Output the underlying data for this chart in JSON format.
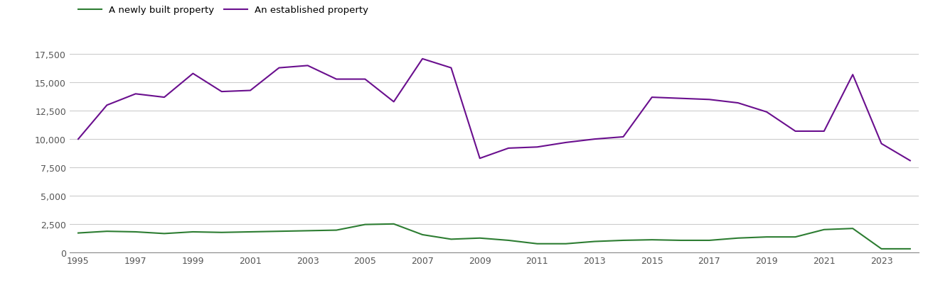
{
  "years": [
    1995,
    1996,
    1997,
    1998,
    1999,
    2000,
    2001,
    2002,
    2003,
    2004,
    2005,
    2006,
    2007,
    2008,
    2009,
    2010,
    2011,
    2012,
    2013,
    2014,
    2015,
    2016,
    2017,
    2018,
    2019,
    2020,
    2021,
    2022,
    2023,
    2024
  ],
  "new_homes": [
    1700,
    1850,
    1800,
    1650,
    1800,
    1750,
    1800,
    1850,
    1900,
    1950,
    2450,
    2500,
    1550,
    1150,
    1250,
    1050,
    750,
    750,
    950,
    1050,
    1100,
    1050,
    1050,
    1250,
    1350,
    1350,
    2000,
    2100,
    300,
    300
  ],
  "established_homes": [
    10000,
    13000,
    14000,
    13700,
    15800,
    14200,
    14300,
    16300,
    16500,
    15300,
    15300,
    13300,
    17100,
    16300,
    8300,
    9200,
    9300,
    9700,
    10000,
    10200,
    13700,
    13600,
    13500,
    13200,
    12400,
    10700,
    10700,
    15700,
    9600,
    8100
  ],
  "new_color": "#2d7d32",
  "established_color": "#6a0f8e",
  "legend_new": "A newly built property",
  "legend_established": "An established property",
  "ylim": [
    0,
    18500
  ],
  "yticks": [
    0,
    2500,
    5000,
    7500,
    10000,
    12500,
    15000,
    17500
  ],
  "ytick_labels": [
    "0",
    "2,500",
    "5,000",
    "7,500",
    "10,000",
    "12,500",
    "15,000",
    "17,500"
  ],
  "xlim_start": 1995,
  "xlim_end": 2024,
  "xtick_start": 1995,
  "xtick_end": 2023,
  "xtick_step": 2,
  "background_color": "#ffffff",
  "grid_color": "#cccccc",
  "line_width": 1.5
}
